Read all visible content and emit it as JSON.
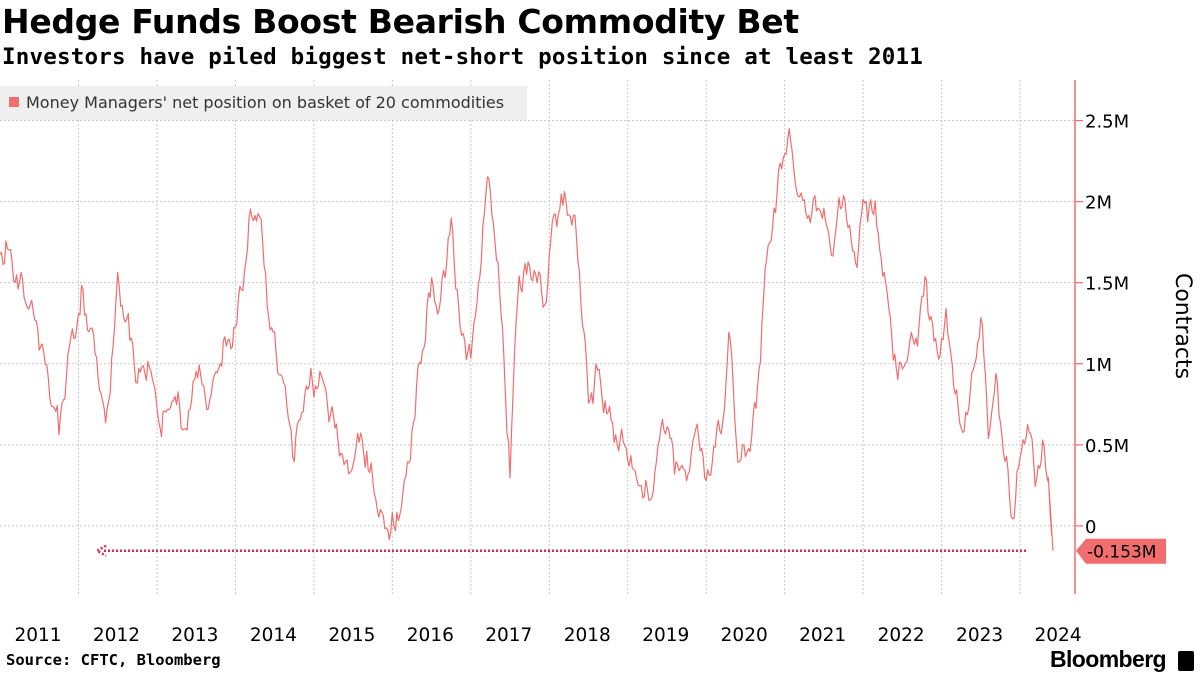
{
  "header": {
    "title": "Hedge Funds Boost Bearish Commodity Bet",
    "subtitle": "Investors have piled biggest net-short position since at least 2011"
  },
  "footer": {
    "source": "Source: CFTC, Bloomberg",
    "brand": "Bloomberg"
  },
  "colors": {
    "series": "#f26d6d",
    "grid": "#c8c8c8",
    "legend_bg": "#efefef",
    "callout_bg": "#f26d6d",
    "arrow": "#e0284d"
  },
  "chart_data": {
    "type": "line",
    "title": "Hedge Funds Boost Bearish Commodity Bet",
    "subtitle": "Investors have piled biggest net-short position since at least 2011",
    "ylabel": "Contracts",
    "xlabel": "",
    "ylim": [
      -0.42,
      2.75
    ],
    "xlim": [
      2011.0,
      2024.7
    ],
    "y_ticks": [
      0,
      0.5,
      1,
      1.5,
      2,
      2.5
    ],
    "y_tick_labels": [
      "0",
      "0.5M",
      "1M",
      "1.5M",
      "2M",
      "2.5M"
    ],
    "x_ticks": [
      2011,
      2012,
      2013,
      2014,
      2015,
      2016,
      2017,
      2018,
      2019,
      2020,
      2021,
      2022,
      2023,
      2024
    ],
    "x_tick_labels": [
      "2011",
      "2012",
      "2013",
      "2014",
      "2015",
      "2016",
      "2017",
      "2018",
      "2019",
      "2020",
      "2021",
      "2022",
      "2023",
      "2024"
    ],
    "grid": true,
    "legend_position": "top-left",
    "y_axis_side": "right",
    "series": [
      {
        "name": "Money Managers' net position on basket of 20 commodities",
        "x": [
          2011.0,
          2011.1,
          2011.2,
          2011.35,
          2011.5,
          2011.65,
          2011.75,
          2011.9,
          2012.05,
          2012.2,
          2012.35,
          2012.5,
          2012.6,
          2012.75,
          2012.9,
          2013.05,
          2013.2,
          2013.4,
          2013.5,
          2013.65,
          2013.85,
          2014.0,
          2014.2,
          2014.3,
          2014.45,
          2014.6,
          2014.75,
          2014.9,
          2015.1,
          2015.3,
          2015.45,
          2015.6,
          2015.75,
          2015.9,
          2016.05,
          2016.2,
          2016.35,
          2016.5,
          2016.6,
          2016.75,
          2016.8,
          2016.95,
          2017.1,
          2017.2,
          2017.35,
          2017.5,
          2017.6,
          2017.75,
          2017.95,
          2018.05,
          2018.2,
          2018.35,
          2018.5,
          2018.6,
          2018.8,
          2018.95,
          2019.1,
          2019.3,
          2019.45,
          2019.6,
          2019.75,
          2019.9,
          2020.0,
          2020.1,
          2020.2,
          2020.3,
          2020.4,
          2020.55,
          2020.65,
          2020.75,
          2020.85,
          2020.95,
          2021.05,
          2021.15,
          2021.3,
          2021.45,
          2021.6,
          2021.75,
          2021.9,
          2022.0,
          2022.1,
          2022.2,
          2022.3,
          2022.45,
          2022.6,
          2022.7,
          2022.8,
          2022.95,
          2023.05,
          2023.25,
          2023.4,
          2023.5,
          2023.6,
          2023.7,
          2023.8,
          2023.9,
          2024.0,
          2024.1,
          2024.2,
          2024.3,
          2024.36,
          2024.42
        ],
        "values": [
          1.7,
          1.7,
          1.55,
          1.4,
          1.2,
          0.8,
          0.6,
          1.1,
          1.4,
          1.1,
          0.6,
          1.5,
          1.3,
          0.9,
          1.0,
          0.6,
          0.8,
          0.6,
          1.0,
          0.75,
          1.1,
          1.2,
          1.9,
          1.95,
          1.2,
          0.9,
          0.45,
          0.85,
          0.9,
          0.55,
          0.3,
          0.55,
          0.25,
          0.0,
          0.0,
          0.35,
          1.0,
          1.5,
          1.3,
          1.9,
          1.5,
          1.0,
          1.4,
          2.2,
          1.6,
          0.35,
          1.5,
          1.6,
          1.4,
          1.9,
          2.0,
          1.8,
          0.75,
          0.95,
          0.6,
          0.5,
          0.3,
          0.15,
          0.7,
          0.4,
          0.3,
          0.6,
          0.25,
          0.5,
          0.6,
          1.2,
          0.4,
          0.5,
          0.8,
          1.55,
          1.9,
          2.2,
          2.4,
          2.1,
          1.9,
          2.0,
          1.7,
          2.05,
          1.6,
          1.95,
          2.0,
          1.8,
          1.4,
          0.9,
          1.1,
          1.2,
          1.5,
          1.0,
          1.3,
          0.55,
          0.9,
          1.3,
          0.6,
          0.9,
          0.45,
          0.05,
          0.4,
          0.65,
          0.3,
          0.45,
          0.3,
          -0.153
        ]
      }
    ],
    "last_value_label": "-0.153M",
    "legend": [
      "Money Managers' net position on basket of 20 commodities"
    ]
  }
}
